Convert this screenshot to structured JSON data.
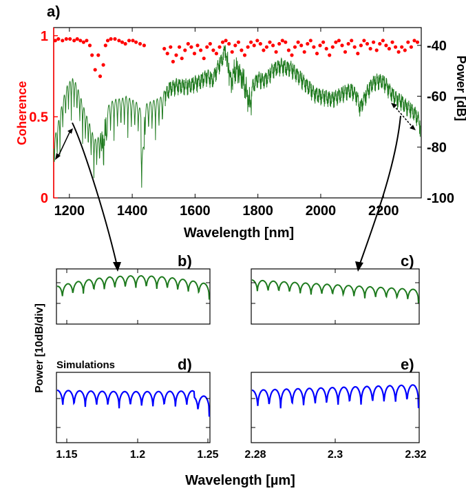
{
  "chart_data": [
    {
      "panel": "a)",
      "type": "line",
      "xlabel": "Wavelength [nm]",
      "ylabel_left": "Coherence",
      "ylabel_right": "Power [dB]",
      "xlim": [
        1150,
        2320
      ],
      "ylim_left": [
        0,
        1.05
      ],
      "ylim_right": [
        -100,
        -33
      ],
      "xticks": [
        1200,
        1400,
        1600,
        1800,
        2000,
        2200
      ],
      "yticks_left": [
        0,
        0.5,
        1
      ],
      "yticks_right": [
        -100,
        -80,
        -60,
        -40
      ],
      "colors": {
        "coherence": "#ff0000",
        "power": "#1e7a1e"
      },
      "series": [
        {
          "kind": "scatter",
          "axis": "left",
          "points": [
            [
              1155,
              0.97
            ],
            [
              1165,
              0.98
            ],
            [
              1178,
              0.97
            ],
            [
              1190,
              0.98
            ],
            [
              1202,
              0.98
            ],
            [
              1215,
              0.97
            ],
            [
              1225,
              0.98
            ],
            [
              1235,
              0.97
            ],
            [
              1245,
              0.96
            ],
            [
              1255,
              0.97
            ],
            [
              1265,
              0.94
            ],
            [
              1272,
              0.88
            ],
            [
              1282,
              0.79
            ],
            [
              1292,
              0.88
            ],
            [
              1298,
              0.75
            ],
            [
              1308,
              0.82
            ],
            [
              1315,
              0.94
            ],
            [
              1322,
              0.97
            ],
            [
              1332,
              0.98
            ],
            [
              1345,
              0.98
            ],
            [
              1358,
              0.97
            ],
            [
              1368,
              0.96
            ],
            [
              1378,
              0.95
            ],
            [
              1390,
              0.97
            ],
            [
              1402,
              0.97
            ],
            [
              1412,
              0.96
            ],
            [
              1425,
              0.95
            ],
            [
              1438,
              0.94
            ],
            [
              1502,
              0.92
            ],
            [
              1512,
              0.89
            ],
            [
              1522,
              0.93
            ],
            [
              1530,
              0.84
            ],
            [
              1540,
              0.88
            ],
            [
              1550,
              0.93
            ],
            [
              1558,
              0.86
            ],
            [
              1568,
              0.91
            ],
            [
              1578,
              0.95
            ],
            [
              1588,
              0.93
            ],
            [
              1598,
              0.89
            ],
            [
              1608,
              0.94
            ],
            [
              1618,
              0.91
            ],
            [
              1628,
              0.86
            ],
            [
              1638,
              0.93
            ],
            [
              1648,
              0.95
            ],
            [
              1658,
              0.91
            ],
            [
              1668,
              0.89
            ],
            [
              1678,
              0.93
            ],
            [
              1688,
              0.96
            ],
            [
              1698,
              0.97
            ],
            [
              1708,
              0.95
            ],
            [
              1718,
              0.9
            ],
            [
              1728,
              0.94
            ],
            [
              1738,
              0.96
            ],
            [
              1748,
              0.91
            ],
            [
              1758,
              0.88
            ],
            [
              1768,
              0.93
            ],
            [
              1778,
              0.96
            ],
            [
              1788,
              0.94
            ],
            [
              1798,
              0.97
            ],
            [
              1808,
              0.95
            ],
            [
              1818,
              0.91
            ],
            [
              1828,
              0.93
            ],
            [
              1838,
              0.96
            ],
            [
              1848,
              0.94
            ],
            [
              1858,
              0.9
            ],
            [
              1868,
              0.95
            ],
            [
              1878,
              0.97
            ],
            [
              1888,
              0.96
            ],
            [
              1898,
              0.91
            ],
            [
              1908,
              0.88
            ],
            [
              1918,
              0.93
            ],
            [
              1928,
              0.96
            ],
            [
              1938,
              0.94
            ],
            [
              1948,
              0.9
            ],
            [
              1958,
              0.95
            ],
            [
              1968,
              0.97
            ],
            [
              1978,
              0.93
            ],
            [
              1988,
              0.89
            ],
            [
              1998,
              0.94
            ],
            [
              2008,
              0.96
            ],
            [
              2018,
              0.92
            ],
            [
              2028,
              0.88
            ],
            [
              2038,
              0.93
            ],
            [
              2048,
              0.96
            ],
            [
              2058,
              0.97
            ],
            [
              2068,
              0.94
            ],
            [
              2078,
              0.9
            ],
            [
              2088,
              0.95
            ],
            [
              2098,
              0.97
            ],
            [
              2108,
              0.93
            ],
            [
              2118,
              0.89
            ],
            [
              2128,
              0.94
            ],
            [
              2138,
              0.97
            ],
            [
              2148,
              0.95
            ],
            [
              2158,
              0.92
            ],
            [
              2168,
              0.96
            ],
            [
              2178,
              0.91
            ],
            [
              2188,
              0.95
            ],
            [
              2198,
              0.97
            ],
            [
              2208,
              0.94
            ],
            [
              2218,
              0.92
            ],
            [
              2228,
              0.96
            ],
            [
              2238,
              0.93
            ],
            [
              2248,
              0.9
            ],
            [
              2258,
              0.93
            ],
            [
              2268,
              0.91
            ],
            [
              2278,
              0.96
            ],
            [
              2288,
              0.93
            ],
            [
              2298,
              0.97
            ],
            [
              2308,
              0.96
            ]
          ]
        },
        {
          "kind": "line",
          "axis": "right",
          "envelope": [
            [
              1150,
              -78
            ],
            [
              1165,
              -70
            ],
            [
              1180,
              -61
            ],
            [
              1195,
              -55
            ],
            [
              1210,
              -53
            ],
            [
              1222,
              -55
            ],
            [
              1235,
              -60
            ],
            [
              1250,
              -66
            ],
            [
              1265,
              -71
            ],
            [
              1280,
              -77
            ],
            [
              1295,
              -76
            ],
            [
              1310,
              -70
            ],
            [
              1322,
              -64
            ],
            [
              1335,
              -62
            ],
            [
              1350,
              -61
            ],
            [
              1365,
              -61
            ],
            [
              1380,
              -60
            ],
            [
              1395,
              -61
            ],
            [
              1410,
              -62
            ],
            [
              1420,
              -63
            ],
            [
              1428,
              -66
            ],
            [
              1436,
              -66
            ],
            [
              1445,
              -63
            ],
            [
              1460,
              -62
            ],
            [
              1480,
              -61
            ],
            [
              1495,
              -60
            ],
            [
              1505,
              -57
            ],
            [
              1520,
              -54
            ],
            [
              1540,
              -53
            ],
            [
              1560,
              -53
            ],
            [
              1580,
              -53
            ],
            [
              1600,
              -52
            ],
            [
              1620,
              -51
            ],
            [
              1640,
              -49
            ],
            [
              1655,
              -51
            ],
            [
              1665,
              -48
            ],
            [
              1675,
              -45
            ],
            [
              1685,
              -43
            ],
            [
              1695,
              -39
            ],
            [
              1705,
              -41
            ],
            [
              1715,
              -48
            ],
            [
              1725,
              -44
            ],
            [
              1735,
              -43
            ],
            [
              1745,
              -45
            ],
            [
              1755,
              -48
            ],
            [
              1765,
              -53
            ],
            [
              1775,
              -56
            ],
            [
              1785,
              -53
            ],
            [
              1800,
              -50
            ],
            [
              1815,
              -51
            ],
            [
              1830,
              -50
            ],
            [
              1845,
              -47
            ],
            [
              1860,
              -46
            ],
            [
              1875,
              -45
            ],
            [
              1890,
              -46
            ],
            [
              1905,
              -46
            ],
            [
              1920,
              -48
            ],
            [
              1935,
              -50
            ],
            [
              1950,
              -52
            ],
            [
              1965,
              -54
            ],
            [
              1980,
              -56
            ],
            [
              1995,
              -57
            ],
            [
              2010,
              -57
            ],
            [
              2025,
              -58
            ],
            [
              2040,
              -58
            ],
            [
              2055,
              -57
            ],
            [
              2070,
              -56
            ],
            [
              2085,
              -55
            ],
            [
              2100,
              -55
            ],
            [
              2115,
              -57
            ],
            [
              2125,
              -62
            ],
            [
              2135,
              -59
            ],
            [
              2150,
              -55
            ],
            [
              2165,
              -52
            ],
            [
              2180,
              -51
            ],
            [
              2195,
              -51
            ],
            [
              2210,
              -53
            ],
            [
              2225,
              -56
            ],
            [
              2240,
              -58
            ],
            [
              2255,
              -59
            ],
            [
              2270,
              -61
            ],
            [
              2285,
              -62
            ],
            [
              2300,
              -64
            ],
            [
              2310,
              -66
            ],
            [
              2318,
              -70
            ]
          ]
        }
      ]
    },
    {
      "panel": "b)",
      "type": "line",
      "color": "#1e7a1e",
      "x_range_um": [
        1.15,
        1.25
      ],
      "description_series": "Interference fringes, measured"
    },
    {
      "panel": "c)",
      "type": "line",
      "color": "#1e7a1e",
      "x_range_um": [
        2.28,
        2.32
      ]
    },
    {
      "panel": "d)",
      "type": "line",
      "color": "#0000ff",
      "xticks": [
        "1.15",
        "1.2",
        "1.25"
      ],
      "xlim": [
        1.15,
        1.25
      ]
    },
    {
      "panel": "e)",
      "type": "line",
      "color": "#0000ff",
      "xticks": [
        "2.28",
        "2.3",
        "2.32"
      ],
      "xlim": [
        2.28,
        2.32
      ]
    }
  ],
  "labels": {
    "panel_a": "a)",
    "panel_b": "b)",
    "panel_c": "c)",
    "panel_d": "d)",
    "panel_e": "e)",
    "xlabel_a": "Wavelength [nm]",
    "ylabel_left": "Coherence",
    "ylabel_right": "Power [dB]",
    "ylabel_sub": "Power [10dB/div]",
    "simulations": "Simulations",
    "xlabel_bottom": "Wavelength [µm]",
    "xt_a": [
      "1200",
      "1400",
      "1600",
      "1800",
      "2000",
      "2200"
    ],
    "yt_left": [
      "0",
      "0.5",
      "1"
    ],
    "yt_right": [
      "-100",
      "-80",
      "-60",
      "-40"
    ],
    "xt_d": [
      "1.15",
      "1.2",
      "1.25"
    ],
    "xt_e": [
      "2.28",
      "2.3",
      "2.32"
    ]
  }
}
